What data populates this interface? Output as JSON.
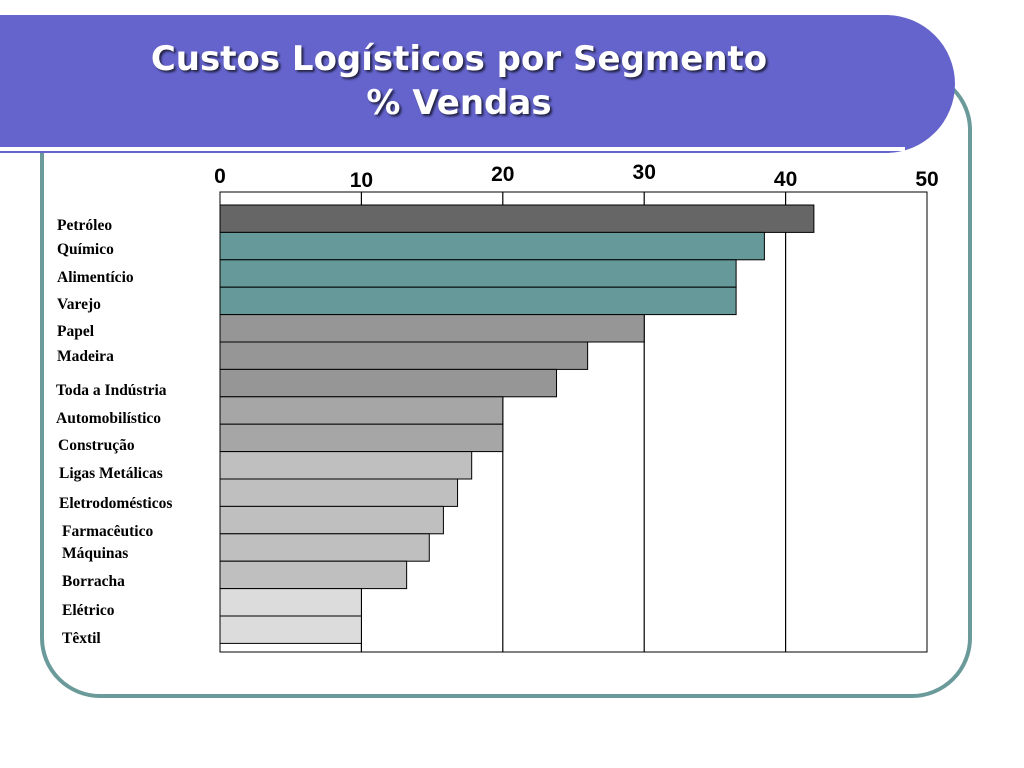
{
  "slide": {
    "title_line1": "Custos Logísticos por Segmento",
    "title_line2": "% Vendas"
  },
  "colors": {
    "title_band": "#6464cc",
    "frame": "#6a9a9a",
    "bar_dark": "#666666",
    "bar_teal": "#669999",
    "bar_gray": "#969696",
    "bar_midgray": "#a6a6a6",
    "bar_lightgray": "#bfbfbf",
    "bar_palest": "#dcdcdc"
  },
  "chart_data": {
    "type": "bar",
    "orientation": "horizontal",
    "title": "Custos Logísticos por Segmento % Vendas",
    "xlim": [
      0,
      50
    ],
    "ticks": [
      0,
      10,
      20,
      30,
      40,
      50
    ],
    "grid": true,
    "categories": [
      "Petróleo",
      "Químico",
      "Alimentício",
      "Varejo",
      "Papel",
      "Madeira",
      "Toda a Indústria",
      "Automobilístico",
      "Construção",
      "Ligas Metálicas",
      "Eletrodomésticos",
      "Farmacêutico",
      "Máquinas",
      "Borracha",
      "Elétrico",
      "Têxtil"
    ],
    "values": [
      42,
      38.5,
      36.5,
      36.5,
      30,
      26,
      23.8,
      20,
      20,
      17.8,
      16.8,
      15.8,
      14.8,
      13.2,
      10,
      10
    ],
    "bar_colors": [
      "#666666",
      "#669999",
      "#669999",
      "#669999",
      "#969696",
      "#969696",
      "#969696",
      "#a6a6a6",
      "#a6a6a6",
      "#bfbfbf",
      "#bfbfbf",
      "#bfbfbf",
      "#bfbfbf",
      "#bfbfbf",
      "#dcdcdc",
      "#dcdcdc"
    ]
  }
}
